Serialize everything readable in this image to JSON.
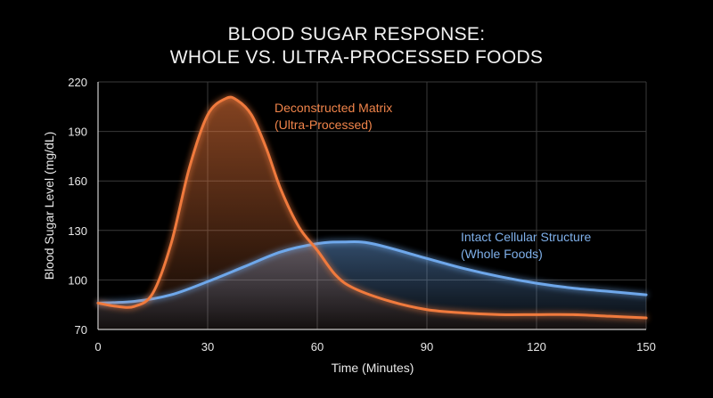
{
  "colors": {
    "background": "#000000",
    "orange": "#f07a3c",
    "blue": "#6ea7ea",
    "grid": "#3a3a3a"
  },
  "chart_data": {
    "type": "line",
    "title_lines": [
      "BLOOD SUGAR RESPONSE:",
      "WHOLE VS. ULTRA-PROCESSED FOODS"
    ],
    "xlabel": "Time (Minutes)",
    "ylabel": "Blood Sugar Level (mg/dL)",
    "xlim": [
      0,
      150
    ],
    "ylim": [
      70,
      220
    ],
    "xticks": [
      0,
      30,
      60,
      90,
      120,
      150
    ],
    "yticks": [
      70,
      100,
      130,
      160,
      190,
      220
    ],
    "grid": true,
    "series": [
      {
        "name": "Deconstructed Matrix (Ultra-Processed)",
        "label_lines": [
          "Deconstructed Matrix",
          "(Ultra-Processed)"
        ],
        "color": "orange",
        "x": [
          0,
          5,
          10,
          15,
          20,
          25,
          30,
          35,
          38,
          42,
          46,
          50,
          55,
          60,
          65,
          70,
          80,
          90,
          100,
          110,
          120,
          130,
          140,
          150
        ],
        "y": [
          86,
          84,
          84,
          92,
          122,
          168,
          200,
          210,
          209,
          200,
          180,
          155,
          132,
          118,
          103,
          95,
          87,
          82,
          80,
          79,
          79,
          79,
          78,
          77
        ]
      },
      {
        "name": "Intact Cellular Structure (Whole Foods)",
        "label_lines": [
          "Intact Cellular Structure",
          "(Whole Foods)"
        ],
        "color": "blue",
        "x": [
          0,
          10,
          20,
          30,
          40,
          50,
          60,
          67,
          75,
          90,
          100,
          110,
          120,
          130,
          140,
          150
        ],
        "y": [
          86,
          87,
          91,
          99,
          108,
          117,
          122,
          123,
          122,
          113,
          107,
          102,
          98,
          95,
          93,
          91
        ]
      }
    ]
  }
}
